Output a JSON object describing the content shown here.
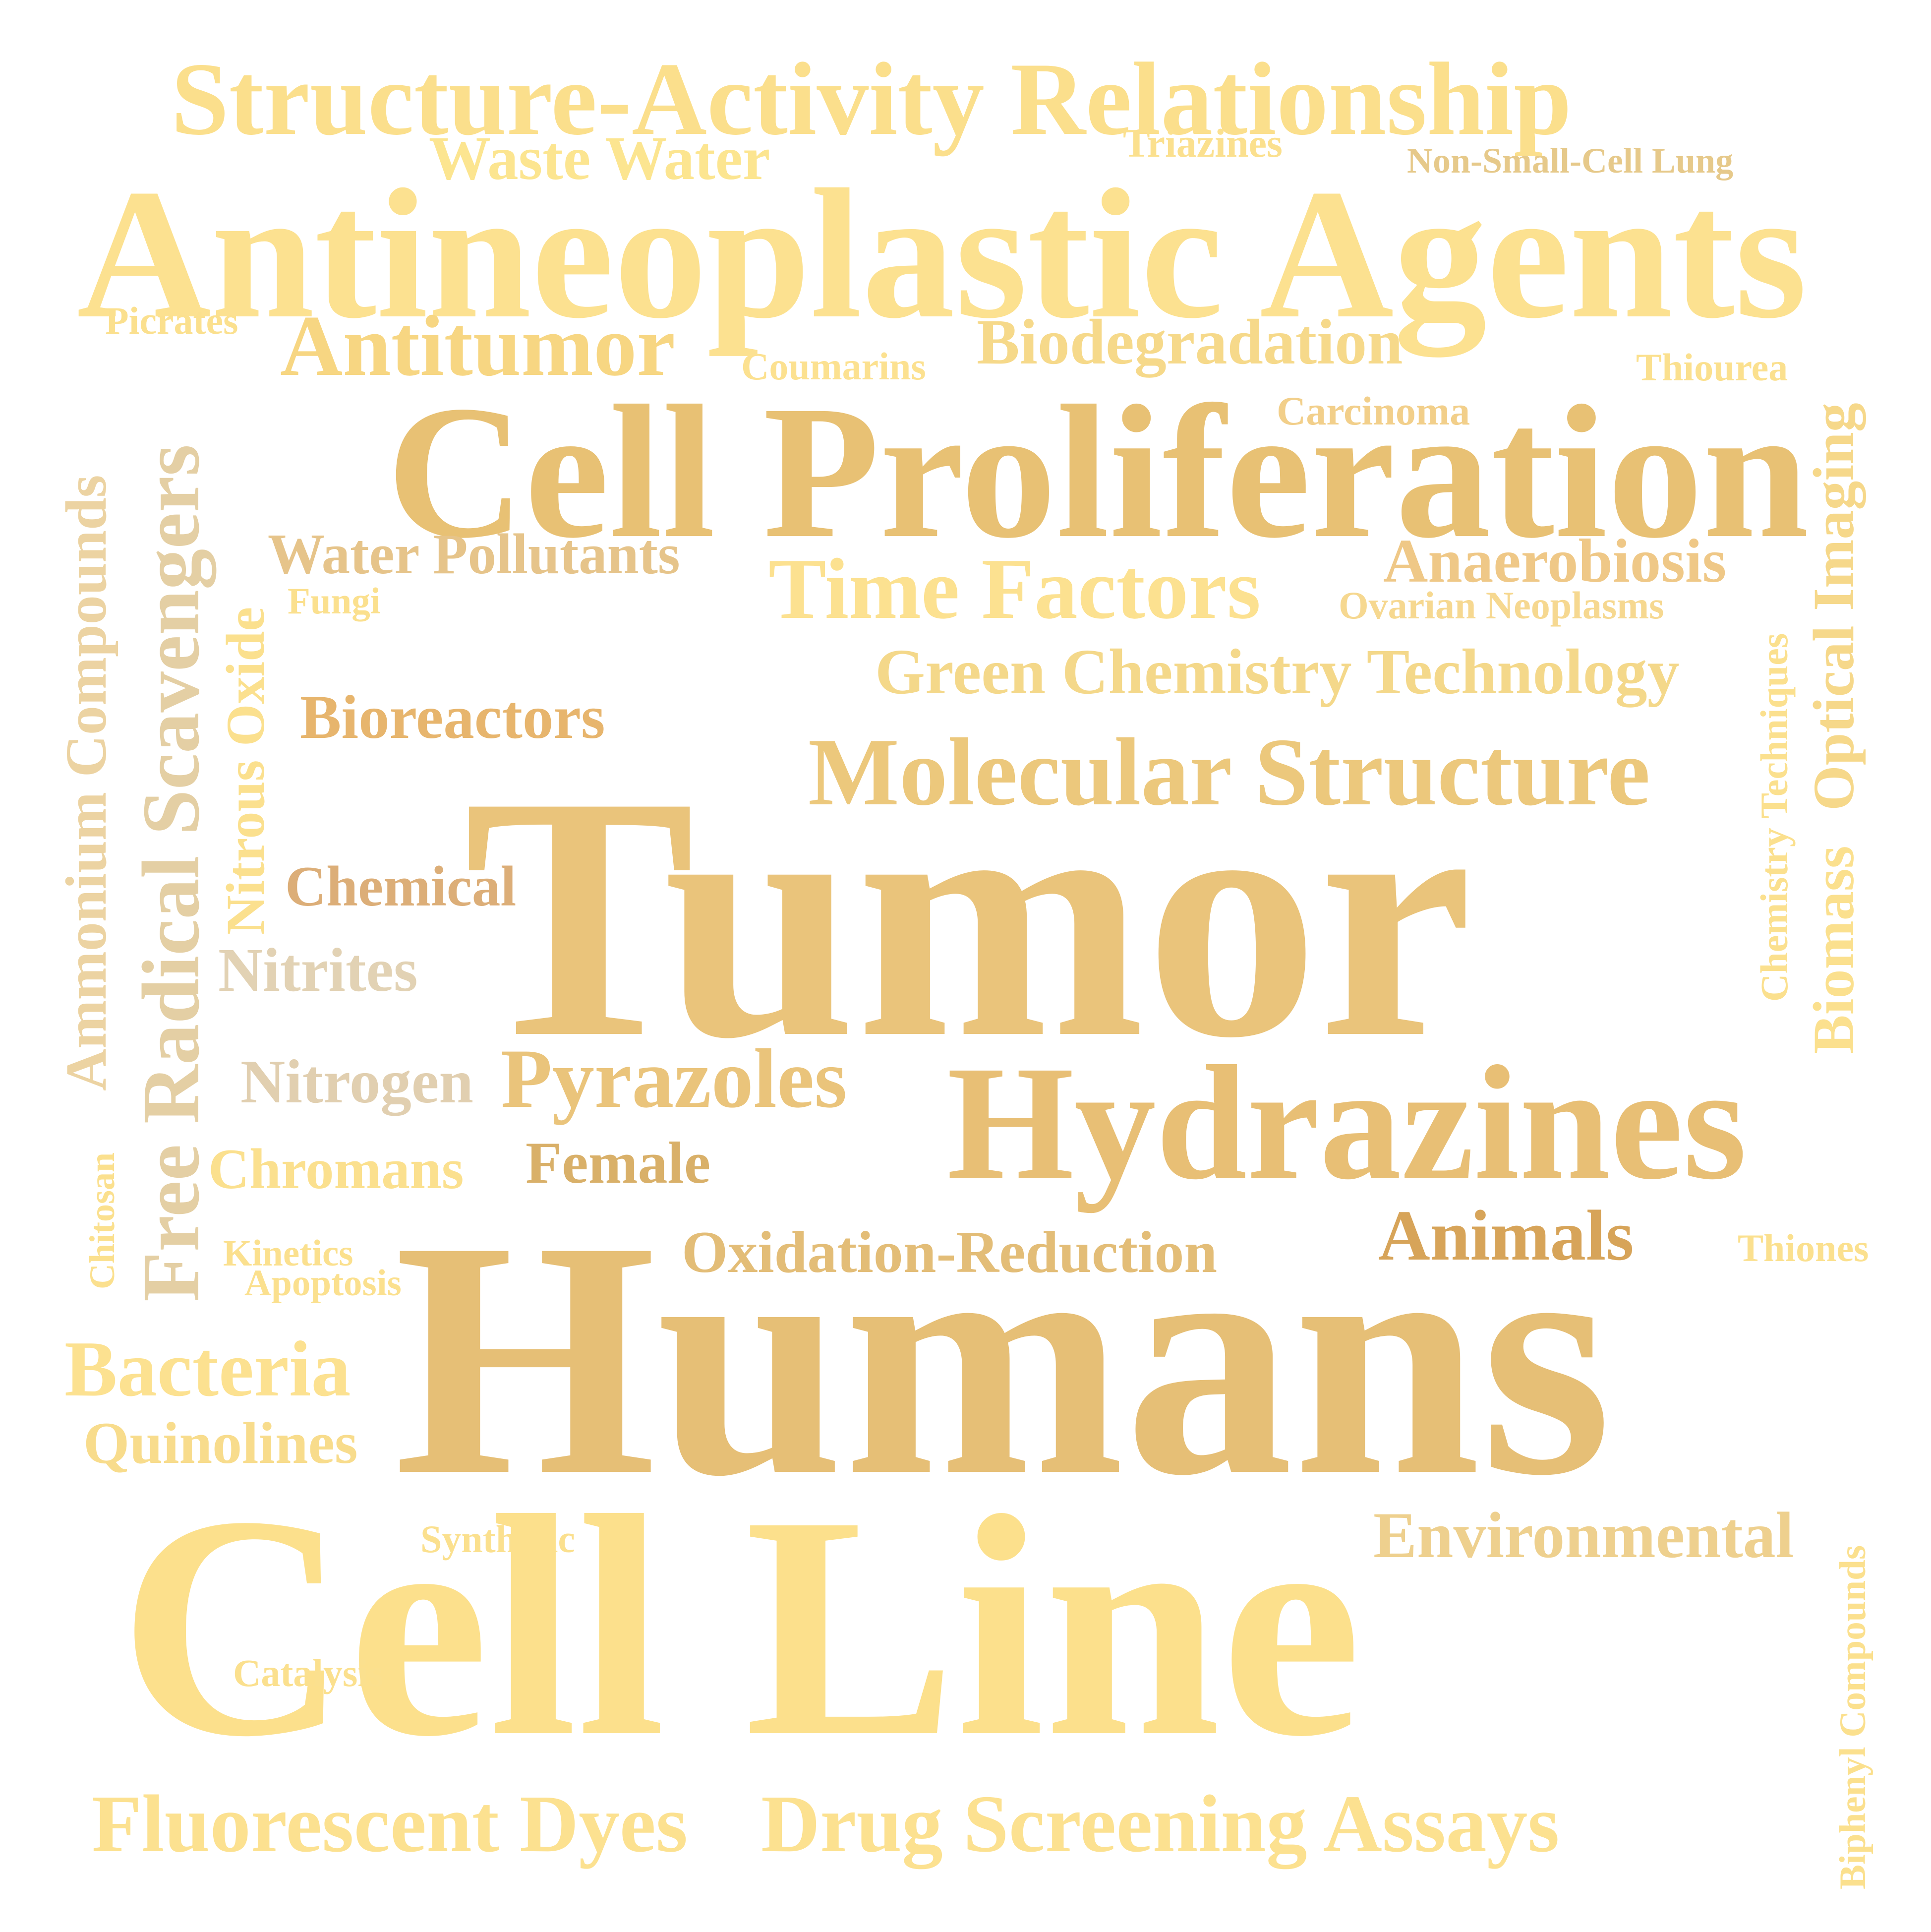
{
  "words": [
    {
      "id": "structure-activity-relationship",
      "text": "Structure-Activity Relationship",
      "color": "#fbdf8c"
    },
    {
      "id": "waste-water",
      "text": "Waste Water",
      "color": "#fce590"
    },
    {
      "id": "triazines",
      "text": "Triazines",
      "color": "#fbe08e"
    },
    {
      "id": "non-small-cell-lung",
      "text": "Non-Small-Cell Lung",
      "color": "#e6c98a"
    },
    {
      "id": "antineoplastic-agents",
      "text": "Antineoplastic Agents",
      "color": "#fce190"
    },
    {
      "id": "picrates",
      "text": "Picrates",
      "color": "#fbe08e"
    },
    {
      "id": "antitumor",
      "text": "Antitumor",
      "color": "#f7d682"
    },
    {
      "id": "coumarins",
      "text": "Coumarins",
      "color": "#fce190"
    },
    {
      "id": "biodegradation",
      "text": "Biodegradation",
      "color": "#f6d98a"
    },
    {
      "id": "thiourea",
      "text": "Thiourea",
      "color": "#fbe08e"
    },
    {
      "id": "carcinoma",
      "text": "Carcinoma",
      "color": "#f2cf8a"
    },
    {
      "id": "cell-proliferation",
      "text": "Cell Proliferation",
      "color": "#e8c174"
    },
    {
      "id": "water-pollutants",
      "text": "Water Pollutants",
      "color": "#e6c48a"
    },
    {
      "id": "fungi",
      "text": "Fungi",
      "color": "#fbe08e"
    },
    {
      "id": "time-factors",
      "text": "Time Factors",
      "color": "#fce190"
    },
    {
      "id": "anaerobiosis",
      "text": "Anaerobiosis",
      "color": "#efc887"
    },
    {
      "id": "ovarian-neoplasms",
      "text": "Ovarian Neoplasms",
      "color": "#f6d890"
    },
    {
      "id": "green-chemistry-technology",
      "text": "Green Chemistry Technology",
      "color": "#f4d88a"
    },
    {
      "id": "bioreactors",
      "text": "Bioreactors",
      "color": "#e7b56d"
    },
    {
      "id": "molecular-structure",
      "text": "Molecular Structure",
      "color": "#ecc87c"
    },
    {
      "id": "tumor",
      "text": "Tumor",
      "color": "#eac47b"
    },
    {
      "id": "chemical",
      "text": "Chemical",
      "color": "#dcae78"
    },
    {
      "id": "nitrites",
      "text": "Nitrites",
      "color": "#e2d2b4"
    },
    {
      "id": "nitrogen",
      "text": "Nitrogen",
      "color": "#e1cfb0"
    },
    {
      "id": "pyrazoles",
      "text": "Pyrazoles",
      "color": "#eac47b"
    },
    {
      "id": "hydrazines",
      "text": "Hydrazines",
      "color": "#e8bf75"
    },
    {
      "id": "chromans",
      "text": "Chromans",
      "color": "#fbe08e"
    },
    {
      "id": "female",
      "text": "Female",
      "color": "#d9b069"
    },
    {
      "id": "animals",
      "text": "Animals",
      "color": "#d7a459"
    },
    {
      "id": "oxidation-reduction",
      "text": "Oxidation-Reduction",
      "color": "#e3bd77"
    },
    {
      "id": "kinetics",
      "text": "Kinetics",
      "color": "#fbe08e"
    },
    {
      "id": "apoptosis",
      "text": "Apoptosis",
      "color": "#fbe08e"
    },
    {
      "id": "thiones",
      "text": "Thiones",
      "color": "#fbe08e"
    },
    {
      "id": "humans",
      "text": "Humans",
      "color": "#e6bf76"
    },
    {
      "id": "bacteria",
      "text": "Bacteria",
      "color": "#fce190"
    },
    {
      "id": "quinolines",
      "text": "Quinolines",
      "color": "#f8dc8c"
    },
    {
      "id": "synthetic",
      "text": "Synthetic",
      "color": "#fbe08e"
    },
    {
      "id": "environmental",
      "text": "Environmental",
      "color": "#eed08e"
    },
    {
      "id": "cell-line",
      "text": "Cell Line",
      "color": "#fce08c"
    },
    {
      "id": "catalysis",
      "text": "Catalysis",
      "color": "#fbe08e"
    },
    {
      "id": "fluorescent-dyes",
      "text": "Fluorescent Dyes",
      "color": "#fce190"
    },
    {
      "id": "drug-screening-assays",
      "text": "Drug Screening Assays",
      "color": "#fce190"
    },
    {
      "id": "ammonium-compounds",
      "text": "Ammonium Compounds",
      "color": "#ecd3a2"
    },
    {
      "id": "free-radical-scavengers",
      "text": "Free Radical Scavengers",
      "color": "#e4cfa4"
    },
    {
      "id": "nitrous-oxide",
      "text": "Nitrous Oxide",
      "color": "#fbe08e"
    },
    {
      "id": "chitosan",
      "text": "Chitosan",
      "color": "#fbe08e"
    },
    {
      "id": "biomass",
      "text": "Biomass",
      "color": "#fbe08e"
    },
    {
      "id": "optical-imaging",
      "text": "Optical Imaging",
      "color": "#f6d88a"
    },
    {
      "id": "chemistry-techniques",
      "text": "Chemistry Techniques",
      "color": "#fbe08e"
    },
    {
      "id": "biphenyl-compounds",
      "text": "Biphenyl Compounds",
      "color": "#fbe08e"
    }
  ]
}
